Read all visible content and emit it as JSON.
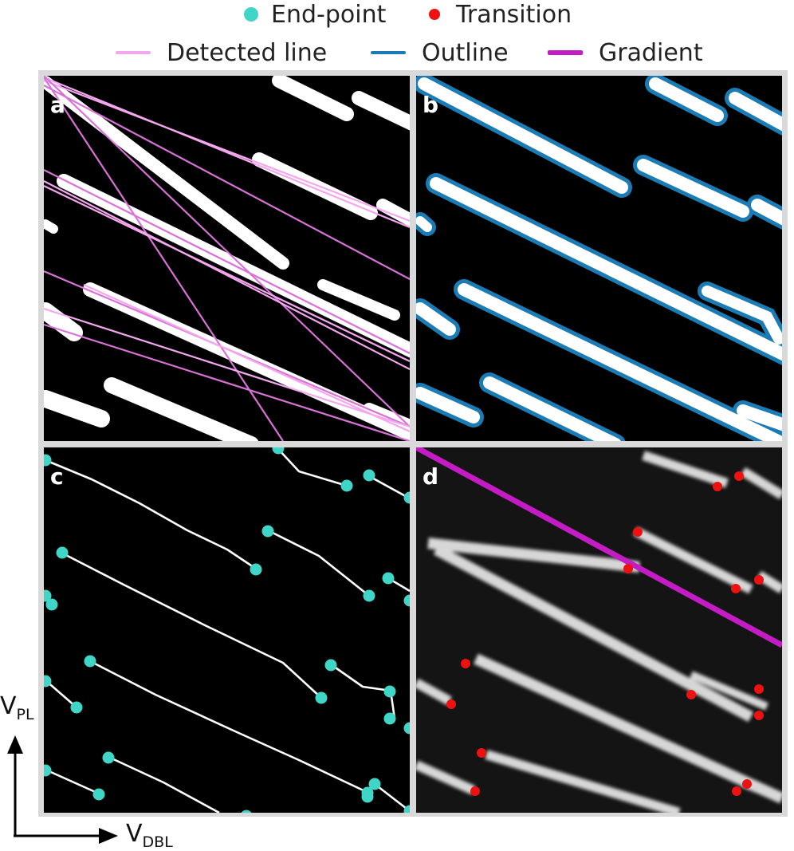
{
  "legend": {
    "endpoint_label": "End-point",
    "transition_label": "Transition",
    "detected_line_label": "Detected line",
    "outline_label": "Outline",
    "gradient_label": "Gradient"
  },
  "colors": {
    "endpoint": "#3fd6c8",
    "transition": "#ee1111",
    "detected_line": "#f4a6ef",
    "detected_line_dark": "#d872d6",
    "outline": "#1b7bb4",
    "gradient": "#c41cc4",
    "frame": "#d9d9d9"
  },
  "panels": {
    "a": {
      "letter": "a"
    },
    "b": {
      "letter": "b"
    },
    "c": {
      "letter": "c"
    },
    "d": {
      "letter": "d"
    }
  },
  "axes": {
    "y_main": "V",
    "y_sub": "PL",
    "x_main": "V",
    "x_sub": "DBL"
  }
}
